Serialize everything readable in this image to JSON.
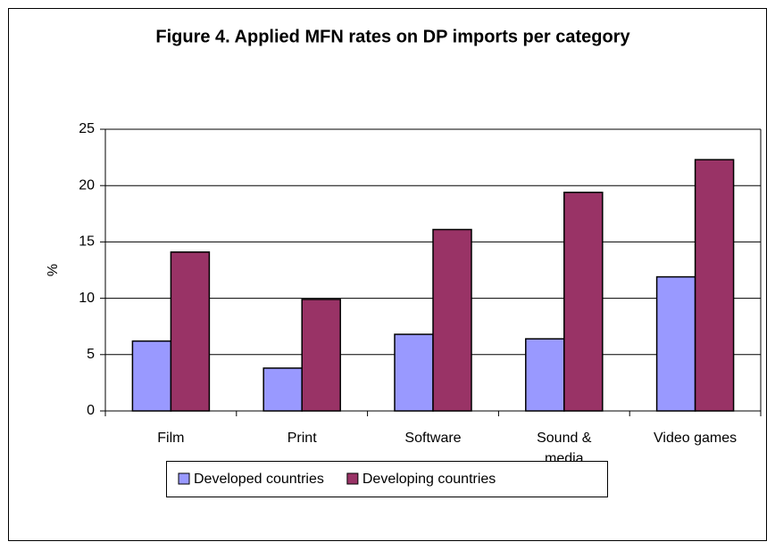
{
  "chart_data": {
    "type": "bar",
    "title": "Figure 4. Applied MFN rates on DP imports per category",
    "y_label": "%",
    "categories": [
      "Film",
      "Print",
      "Software",
      "Sound & media",
      "Video games"
    ],
    "series": [
      {
        "name": "Developed countries",
        "color": "#9999ff",
        "values": [
          6.2,
          3.8,
          6.8,
          6.4,
          11.9
        ]
      },
      {
        "name": "Developing countries",
        "color": "#993366",
        "values": [
          14.1,
          9.9,
          16.1,
          19.4,
          22.3
        ]
      }
    ],
    "ylim": [
      0,
      25
    ],
    "yticks": [
      0,
      5,
      10,
      15,
      20,
      25
    ],
    "grid": true,
    "legend": "bottom"
  }
}
